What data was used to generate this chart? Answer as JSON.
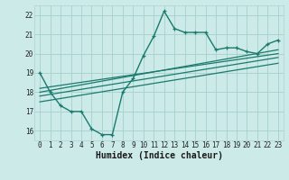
{
  "xlabel": "Humidex (Indice chaleur)",
  "bg_color": "#cceae8",
  "grid_color": "#aad4d0",
  "line_color": "#1a7a6e",
  "xlim": [
    -0.5,
    23.5
  ],
  "ylim": [
    15.5,
    22.5
  ],
  "yticks": [
    16,
    17,
    18,
    19,
    20,
    21,
    22
  ],
  "xticks": [
    0,
    1,
    2,
    3,
    4,
    5,
    6,
    7,
    8,
    9,
    10,
    11,
    12,
    13,
    14,
    15,
    16,
    17,
    18,
    19,
    20,
    21,
    22,
    23
  ],
  "main_line_x": [
    0,
    1,
    2,
    3,
    4,
    5,
    6,
    7,
    8,
    9,
    10,
    11,
    12,
    13,
    14,
    15,
    16,
    17,
    18,
    19,
    20,
    21,
    22,
    23
  ],
  "main_line_y": [
    19.0,
    18.0,
    17.3,
    17.0,
    17.0,
    16.1,
    15.8,
    15.8,
    18.0,
    18.7,
    19.9,
    20.9,
    22.2,
    21.3,
    21.1,
    21.1,
    21.1,
    20.2,
    20.3,
    20.3,
    20.1,
    20.0,
    20.5,
    20.7
  ],
  "reg_lines": [
    {
      "x": [
        0,
        23
      ],
      "y": [
        18.0,
        20.2
      ]
    },
    {
      "x": [
        0,
        23
      ],
      "y": [
        18.2,
        20.0
      ]
    },
    {
      "x": [
        0,
        23
      ],
      "y": [
        17.8,
        19.8
      ]
    },
    {
      "x": [
        0,
        23
      ],
      "y": [
        17.5,
        19.5
      ]
    }
  ]
}
